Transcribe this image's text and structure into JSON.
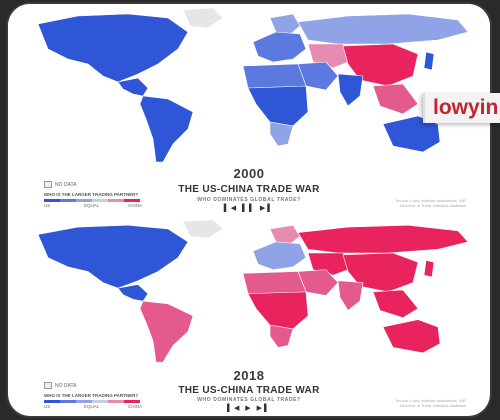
{
  "colors": {
    "us_strong": "#2f56d6",
    "us_mid": "#5b79df",
    "us_light": "#8fa3e6",
    "equal": "#c6cde8",
    "china_light": "#e88bb0",
    "china_mid": "#e55a8e",
    "china_strong": "#e8235e",
    "no_data": "#e6e6e6",
    "ocean": "#ffffff"
  },
  "panels": [
    {
      "year": "2000",
      "title": "THE US-CHINA TRADE WAR",
      "subtitle": "WHO DOMINATES GLOBAL TRADE?",
      "controls": "▌◀ ▌▌ ▶▌",
      "no_data_label": "NO DATA",
      "legend_question": "WHO IS THE LARGER TRADING PARTNER?",
      "legend_labels": {
        "us": "US",
        "equal": "EQUAL",
        "china": "CHINA"
      },
      "source_line1": "Source: Lowy Institute calculations, IMF",
      "source_line2": "Direction of Trade Statistics database",
      "regions": {
        "north_america": "us_strong",
        "greenland": "no_data",
        "central_america": "us_strong",
        "south_america": "us_strong",
        "europe": "us_mid",
        "scandinavia": "us_light",
        "russia": "us_light",
        "central_asia": "china_light",
        "china": "china_strong",
        "middle_east": "us_mid",
        "india": "us_strong",
        "southeast_asia": "china_mid",
        "north_africa": "us_mid",
        "africa": "us_strong",
        "southern_africa": "us_light",
        "australia": "us_strong",
        "japan": "us_strong"
      }
    },
    {
      "year": "2018",
      "title": "THE US-CHINA TRADE WAR",
      "subtitle": "WHO DOMINATES GLOBAL TRADE?",
      "controls": "▌◀ ▶ ▶▌",
      "no_data_label": "NO DATA",
      "legend_question": "WHO IS THE LARGER TRADING PARTNER?",
      "legend_labels": {
        "us": "US",
        "equal": "EQUAL",
        "china": "CHINA"
      },
      "source_line1": "Source: Lowy Institute calculations, IMF",
      "source_line2": "Direction of Trade Statistics database",
      "regions": {
        "north_america": "us_strong",
        "greenland": "no_data",
        "central_america": "us_strong",
        "south_america": "china_mid",
        "europe": "us_light",
        "scandinavia": "china_light",
        "russia": "china_strong",
        "central_asia": "china_strong",
        "china": "china_strong",
        "middle_east": "china_mid",
        "india": "china_mid",
        "southeast_asia": "china_strong",
        "north_africa": "china_mid",
        "africa": "china_strong",
        "southern_africa": "china_mid",
        "australia": "china_strong",
        "japan": "china_strong"
      }
    }
  ],
  "logo": {
    "text": "lowyin"
  }
}
